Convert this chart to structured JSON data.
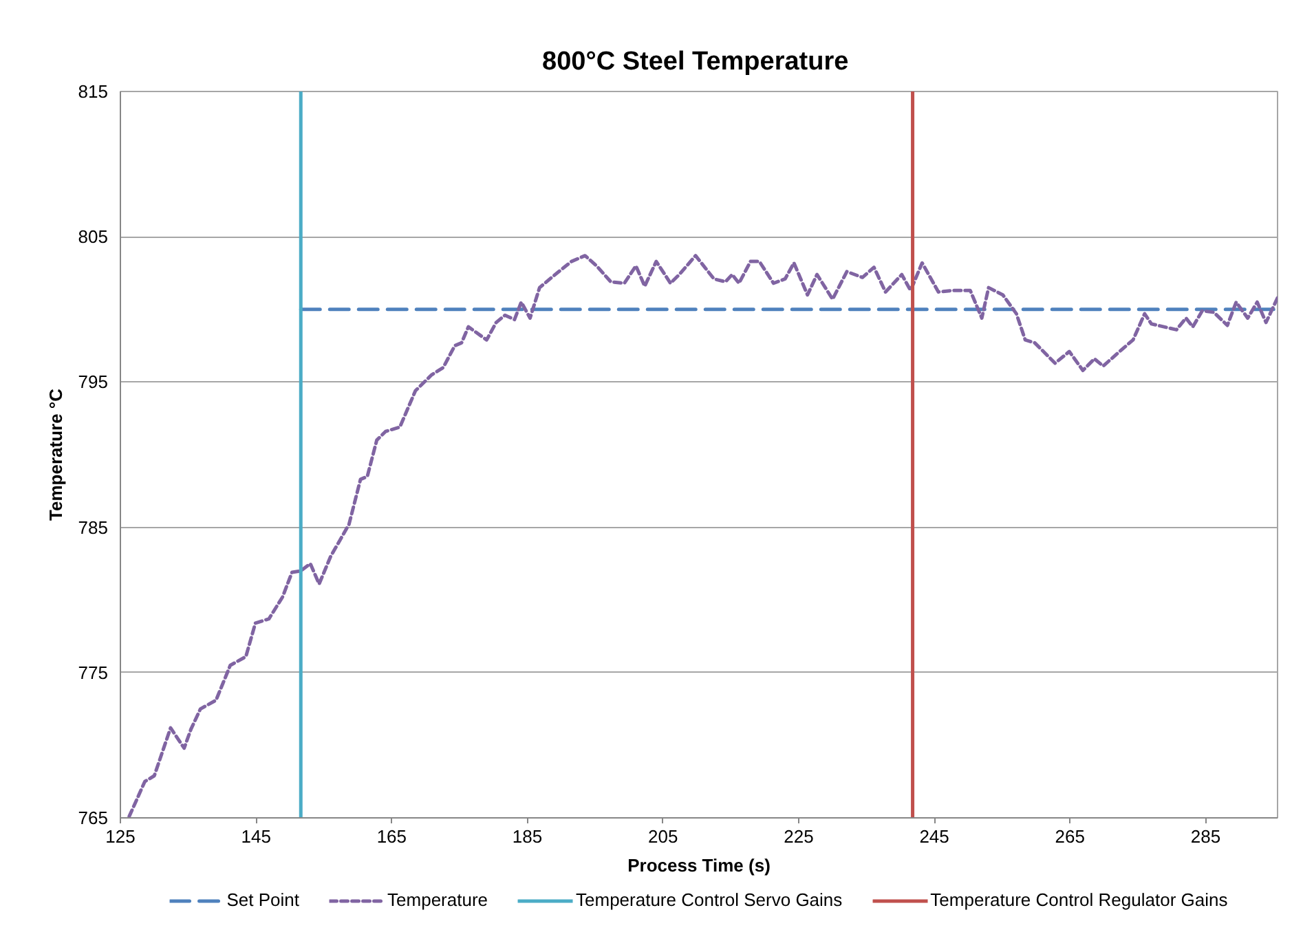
{
  "chart_data": {
    "type": "line",
    "title": "800°C Steel  Temperature",
    "xlabel": "Process Time (s)",
    "ylabel": "Temperature °C",
    "xlim": [
      125,
      295.6
    ],
    "ylim": [
      765,
      815
    ],
    "xticks": [
      125,
      145,
      165,
      185,
      205,
      225,
      245,
      265,
      285
    ],
    "yticks": [
      765,
      775,
      785,
      795,
      805,
      815
    ],
    "grid": "y",
    "legend": "bottom",
    "series": [
      {
        "name": "Set Point",
        "color": "#4f81bd",
        "line_style": "dashed",
        "x": [
          151.6,
          295.6
        ],
        "values": [
          800,
          800
        ]
      },
      {
        "name": "Temperature",
        "color": "#8064a2",
        "line_style": "dotted",
        "x": [
          126.3,
          128.6,
          130.0,
          132.4,
          134.4,
          135.4,
          136.8,
          139.1,
          141.2,
          143.5,
          144.9,
          146.9,
          148.9,
          150.3,
          151.6,
          153.0,
          154.3,
          156.0,
          158.7,
          160.4,
          161.4,
          162.8,
          164.1,
          166.2,
          168.5,
          170.9,
          172.6,
          174.3,
          175.3,
          176.3,
          179.0,
          180.4,
          181.7,
          183.1,
          184.1,
          185.4,
          186.8,
          189.1,
          191.5,
          193.5,
          195.2,
          197.3,
          199.3,
          201.0,
          202.3,
          204.0,
          206.1,
          207.4,
          209.8,
          212.5,
          214.2,
          215.2,
          216.2,
          217.9,
          219.2,
          221.3,
          223.0,
          224.3,
          226.3,
          227.7,
          230.0,
          232.1,
          234.4,
          236.1,
          237.8,
          240.2,
          241.5,
          243.2,
          245.6,
          247.6,
          250.3,
          252.0,
          253.0,
          255.1,
          257.1,
          258.4,
          259.8,
          262.8,
          264.9,
          266.9,
          268.6,
          269.9,
          272.3,
          274.3,
          276.0,
          277.0,
          280.7,
          282.1,
          283.1,
          284.5,
          286.2,
          288.2,
          289.5,
          291.2,
          292.6,
          293.9,
          295.6
        ],
        "values": [
          765.1,
          767.5,
          767.9,
          771.2,
          769.8,
          771.1,
          772.5,
          773.1,
          775.5,
          776.1,
          778.4,
          778.7,
          780.2,
          781.9,
          782.0,
          782.5,
          781.1,
          783.0,
          785.2,
          788.3,
          788.5,
          791.0,
          791.6,
          791.9,
          794.4,
          795.5,
          796.0,
          797.5,
          797.7,
          798.8,
          797.9,
          799.1,
          799.6,
          799.3,
          800.5,
          799.4,
          801.5,
          802.4,
          803.3,
          803.7,
          803.0,
          801.9,
          801.8,
          803.0,
          801.6,
          803.3,
          801.8,
          802.4,
          803.7,
          802.1,
          801.9,
          802.4,
          801.8,
          803.3,
          803.3,
          801.8,
          802.1,
          803.2,
          801.0,
          802.4,
          800.7,
          802.6,
          802.2,
          802.9,
          801.2,
          802.4,
          801.3,
          803.2,
          801.2,
          801.3,
          801.3,
          799.4,
          801.5,
          801.0,
          799.7,
          797.9,
          797.7,
          796.3,
          797.1,
          795.8,
          796.6,
          796.1,
          797.1,
          797.9,
          799.7,
          799.0,
          798.6,
          799.4,
          798.8,
          799.9,
          799.8,
          798.9,
          800.5,
          799.4,
          800.5,
          799.1,
          800.8
        ]
      },
      {
        "name": "Temperature Control Servo Gains",
        "color": "#4bacc6",
        "line_style": "solid",
        "x": [
          151.6,
          151.6
        ],
        "values": [
          765,
          815
        ]
      },
      {
        "name": "Temperature Control Regulator Gains",
        "color": "#c0504d",
        "line_style": "solid",
        "x": [
          241.8,
          241.8
        ],
        "values": [
          765,
          815
        ]
      }
    ]
  }
}
